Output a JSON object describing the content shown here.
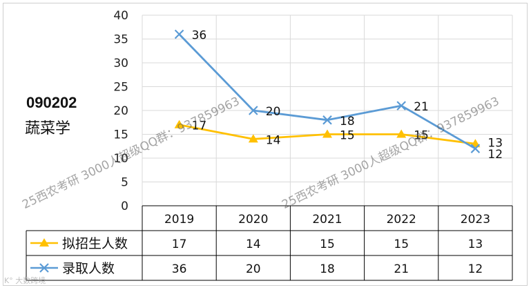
{
  "left_label": {
    "code": "090202",
    "subject": "蔬菜学"
  },
  "watermarks": [
    "25西农考研 3000人超级QQ群：937859963",
    "25西农考研 3000人超级QQ群：937859963"
  ],
  "corner_mark": "K° 大数跨境",
  "chart_data": {
    "type": "line",
    "categories": [
      "2019",
      "2020",
      "2021",
      "2022",
      "2023"
    ],
    "ylim": [
      0,
      40
    ],
    "yticks": [
      0,
      5,
      10,
      15,
      20,
      25,
      30,
      35,
      40
    ],
    "grid": true,
    "legend_placement": "table-left",
    "series": [
      {
        "name": "拟招生人数",
        "values": [
          17,
          14,
          15,
          15,
          13
        ],
        "color": "#ffc000",
        "marker": "triangle"
      },
      {
        "name": "录取人数",
        "values": [
          36,
          20,
          18,
          21,
          12
        ],
        "color": "#5b9bd5",
        "marker": "x"
      }
    ]
  }
}
